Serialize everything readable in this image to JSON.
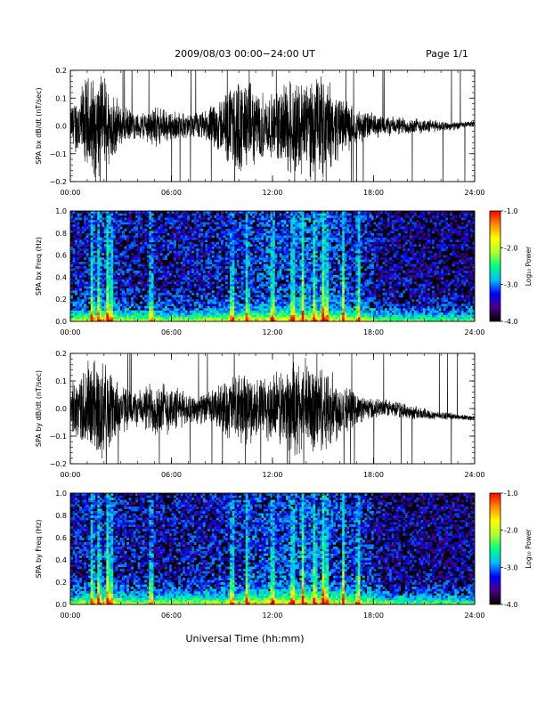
{
  "header": {
    "title": "2009/08/03  00:00−24:00 UT",
    "page": "Page 1/1"
  },
  "footer": {
    "xlabel": "Universal Time (hh:mm)"
  },
  "colorbar": {
    "label": "Log₁₀ Power",
    "ticks": [
      "-1.0",
      "-2.0",
      "-3.0",
      "-4.0"
    ],
    "colors": [
      "#000000",
      "#4b0082",
      "#0000ff",
      "#00bfff",
      "#00ff7f",
      "#adff2f",
      "#ffff00",
      "#ff8c00",
      "#ff0000"
    ]
  },
  "chart_data": [
    {
      "type": "line",
      "ylabel": "SPA bx dB/dt (nT/sec)",
      "xlim": [
        0,
        24
      ],
      "ylim": [
        -0.2,
        0.2
      ],
      "xticks": [
        "00:00",
        "06:00",
        "12:00",
        "18:00",
        "24:00"
      ],
      "yticks": [
        "0.2",
        "0.1",
        "0.0",
        "−0.1",
        "−0.2"
      ],
      "series": [
        {
          "x": [
            0,
            1,
            2,
            3,
            4,
            5,
            6,
            7,
            8,
            9,
            10,
            11,
            12,
            13,
            14,
            15,
            16,
            17,
            18,
            19,
            20,
            21,
            22,
            23,
            24
          ],
          "amplitude": [
            0.08,
            0.2,
            0.2,
            0.08,
            0.05,
            0.08,
            0.06,
            0.05,
            0.06,
            0.12,
            0.2,
            0.15,
            0.12,
            0.2,
            0.2,
            0.2,
            0.12,
            0.07,
            0.05,
            0.04,
            0.035,
            0.03,
            0.02,
            0.015,
            0.01
          ],
          "offset": [
            0.0,
            0.0,
            0.0,
            0.0,
            0.0,
            0.0,
            0.0,
            0.0,
            0.0,
            0.0,
            0.0,
            0.0,
            0.0,
            0.0,
            0.0,
            0.0,
            0.0,
            0.0,
            0.0,
            0.0,
            0.0,
            0.0,
            0.0,
            0.0,
            0.01
          ]
        }
      ]
    },
    {
      "type": "heatmap",
      "ylabel": "SPA bx Freq (Hz)",
      "xlim": [
        0,
        24
      ],
      "ylim": [
        0.0,
        1.0
      ],
      "zlim": [
        -4.0,
        -1.0
      ],
      "xticks": [
        "00:00",
        "06:00",
        "12:00",
        "18:00",
        "24:00"
      ],
      "yticks": [
        "1.0",
        "0.8",
        "0.6",
        "0.4",
        "0.2",
        "0.0"
      ],
      "bursts_hours": [
        1.3,
        1.7,
        2.2,
        2.4,
        4.8,
        9.6,
        10.5,
        12.0,
        13.2,
        13.8,
        14.5,
        15.0,
        15.2,
        16.2,
        17.1
      ]
    },
    {
      "type": "line",
      "ylabel": "SPA by dB/dt (nT/sec)",
      "xlim": [
        0,
        24
      ],
      "ylim": [
        -0.2,
        0.2
      ],
      "xticks": [
        "00:00",
        "06:00",
        "12:00",
        "18:00",
        "24:00"
      ],
      "yticks": [
        "0.2",
        "0.1",
        "0.0",
        "−0.1",
        "−0.2"
      ],
      "series": [
        {
          "x": [
            0,
            1,
            2,
            3,
            4,
            5,
            6,
            7,
            8,
            9,
            10,
            11,
            12,
            13,
            14,
            15,
            16,
            17,
            18,
            19,
            20,
            21,
            22,
            23,
            24
          ],
          "amplitude": [
            0.08,
            0.2,
            0.2,
            0.1,
            0.07,
            0.12,
            0.1,
            0.06,
            0.06,
            0.1,
            0.16,
            0.12,
            0.14,
            0.18,
            0.2,
            0.18,
            0.12,
            0.06,
            0.04,
            0.035,
            0.03,
            0.025,
            0.015,
            0.012,
            0.01
          ],
          "offset": [
            0.0,
            0.0,
            0.0,
            0.0,
            0.0,
            0.0,
            0.0,
            0.0,
            0.0,
            0.0,
            0.0,
            0.0,
            0.0,
            0.0,
            0.0,
            0.0,
            0.0,
            0.0,
            0.0,
            0.0,
            -0.01,
            -0.02,
            -0.025,
            -0.03,
            -0.035
          ]
        }
      ]
    },
    {
      "type": "heatmap",
      "ylabel": "SPA by Freq (Hz)",
      "xlim": [
        0,
        24
      ],
      "ylim": [
        0.0,
        1.0
      ],
      "zlim": [
        -4.0,
        -1.0
      ],
      "xticks": [
        "00:00",
        "06:00",
        "12:00",
        "18:00",
        "24:00"
      ],
      "yticks": [
        "1.0",
        "0.8",
        "0.6",
        "0.4",
        "0.2",
        "0.0"
      ],
      "bursts_hours": [
        1.3,
        1.7,
        2.2,
        2.4,
        4.8,
        9.6,
        10.5,
        12.0,
        13.2,
        13.8,
        14.5,
        15.0,
        15.2,
        16.2,
        17.1
      ]
    }
  ]
}
